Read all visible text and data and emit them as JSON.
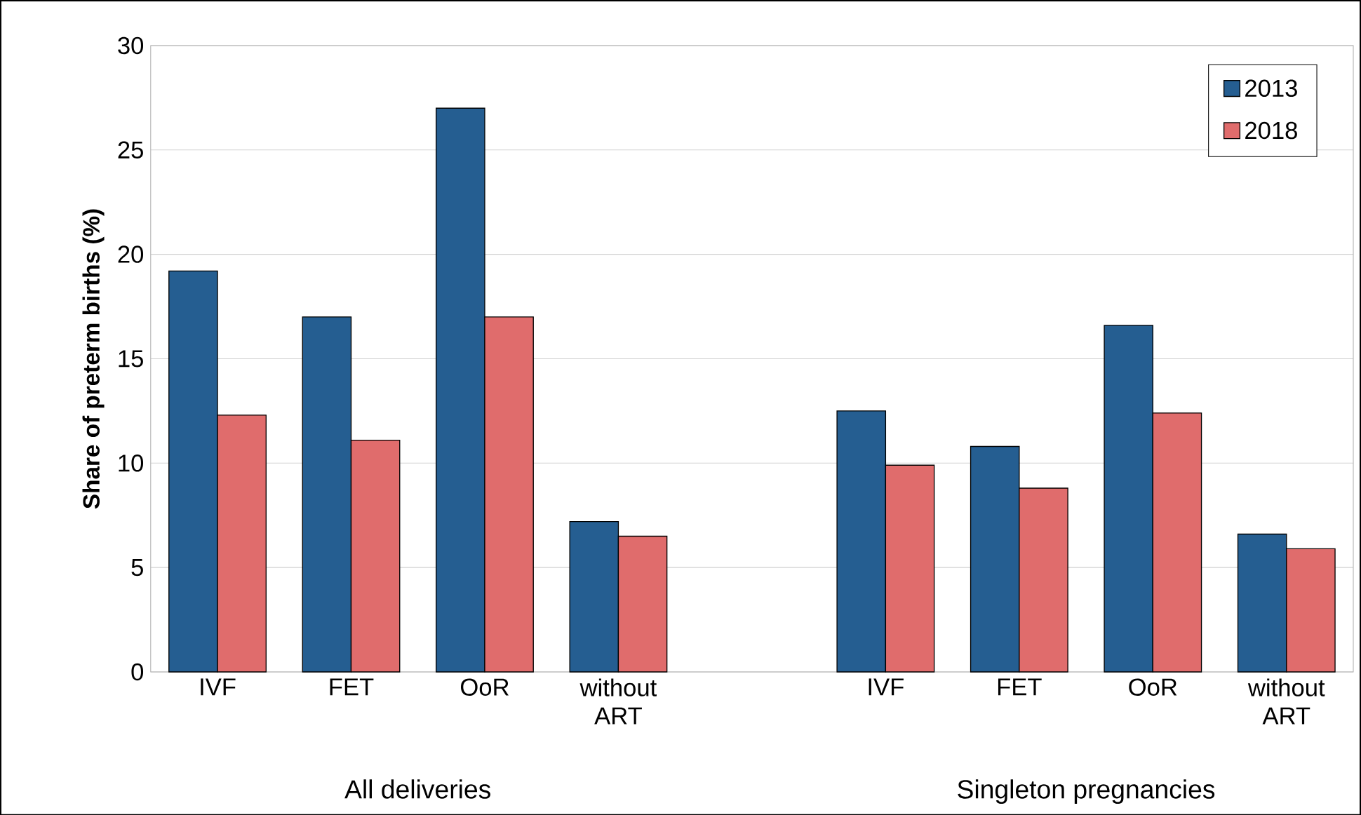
{
  "chart_data": {
    "type": "bar",
    "ylabel": "Share of preterm births (%)",
    "categories": [
      "IVF",
      "FET",
      "OoR",
      "without ART",
      null,
      "IVF",
      "FET",
      "OoR",
      "without ART"
    ],
    "series": [
      {
        "name": "2013",
        "color": "#255e91",
        "values": [
          19.2,
          17.0,
          27.0,
          7.2,
          null,
          12.5,
          10.8,
          16.6,
          6.6
        ]
      },
      {
        "name": "2018",
        "color": "#e06c6c",
        "values": [
          12.3,
          11.1,
          17.0,
          6.5,
          null,
          9.9,
          8.8,
          12.4,
          5.9
        ]
      }
    ],
    "ylim": [
      0,
      30
    ],
    "yticks": [
      0,
      5,
      10,
      15,
      20,
      25,
      30
    ],
    "grid": "y",
    "legend": "top right",
    "annotations": [
      "All deliveries",
      "Singleton pregnancies"
    ]
  }
}
